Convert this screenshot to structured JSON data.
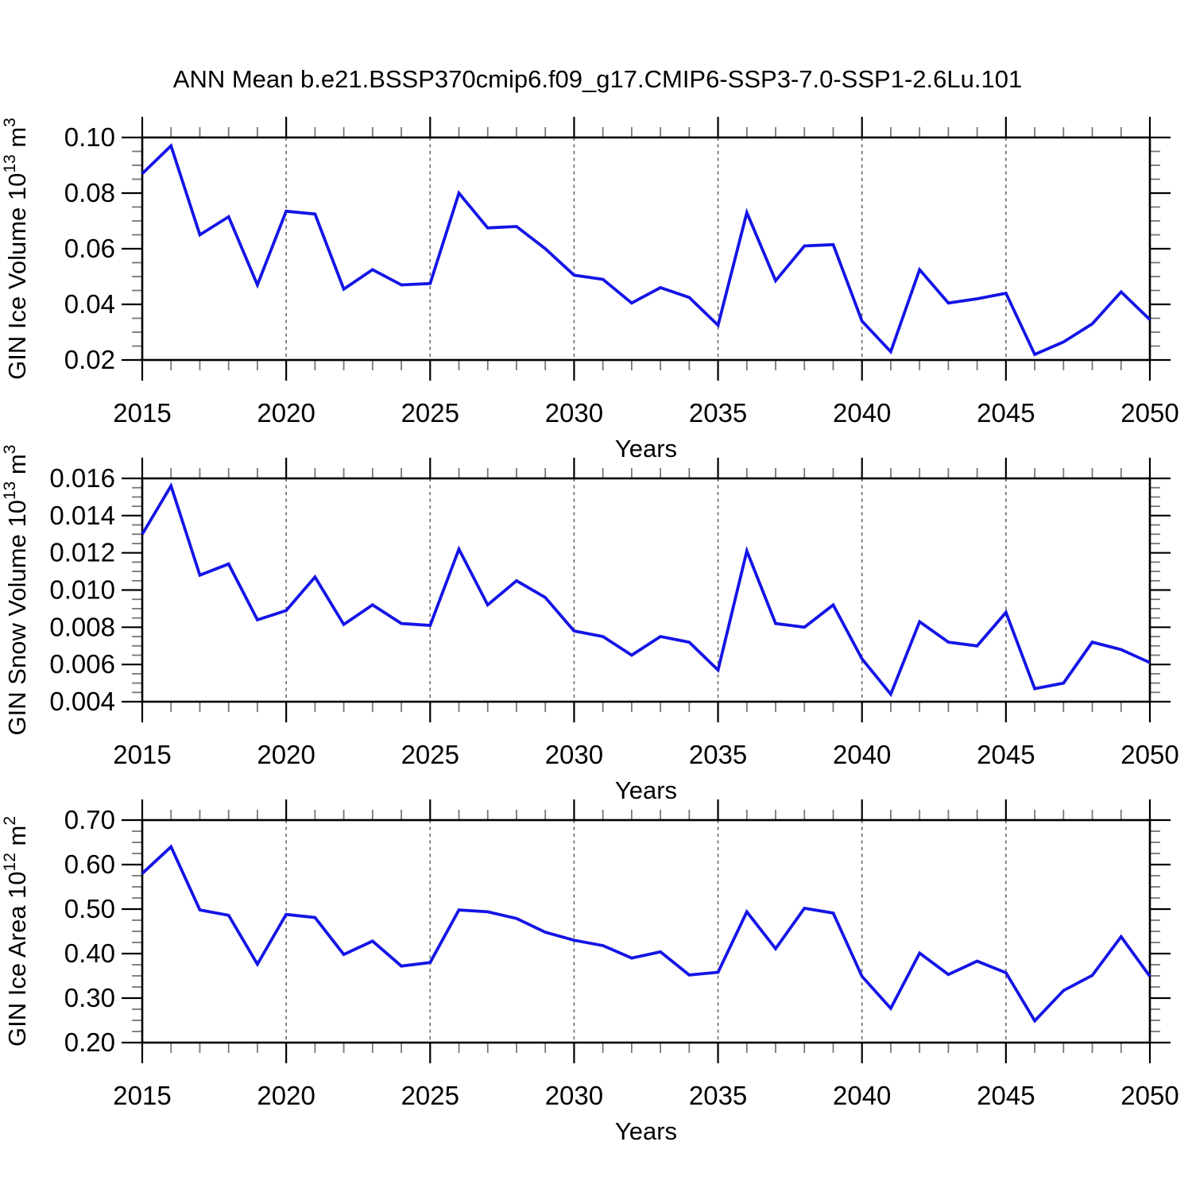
{
  "title": "ANN Mean b.e21.BSSP370cmip6.f09_g17.CMIP6-SSP3-7.0-SSP1-2.6Lu.101",
  "chart_data": [
    {
      "id": "gin-ice-volume",
      "type": "line",
      "title": "",
      "xlabel": "Years",
      "ylabel": "GIN Ice Volume 10^13 m^3",
      "ylabel_parts": [
        {
          "text": "GIN Ice Volume 10",
          "sup": false
        },
        {
          "text": "13",
          "sup": true
        },
        {
          "text": " m",
          "sup": false
        },
        {
          "text": "3",
          "sup": true
        }
      ],
      "color": "#1414e6",
      "xlim": [
        2015,
        2050
      ],
      "ylim": [
        0.02,
        0.1
      ],
      "xticks": {
        "values": [
          2015,
          2020,
          2025,
          2030,
          2035,
          2040,
          2045,
          2050
        ],
        "labels": [
          "2015",
          "2020",
          "2025",
          "2030",
          "2035",
          "2040",
          "2045",
          "2050"
        ]
      },
      "yticks": {
        "values": [
          0.02,
          0.04,
          0.06,
          0.08,
          0.1
        ],
        "labels": [
          "0.02",
          "0.04",
          "0.06",
          "0.08",
          "0.10"
        ]
      },
      "y_minor_step": 0.005,
      "x_minor_step": 1,
      "grid_years": [
        2020,
        2025,
        2030,
        2035,
        2040,
        2045
      ],
      "grid_on": true,
      "legend": null,
      "x": [
        2015,
        2016,
        2017,
        2018,
        2019,
        2020,
        2021,
        2022,
        2023,
        2024,
        2025,
        2026,
        2027,
        2028,
        2029,
        2030,
        2031,
        2032,
        2033,
        2034,
        2035,
        2036,
        2037,
        2038,
        2039,
        2040,
        2041,
        2042,
        2043,
        2044,
        2045,
        2046,
        2047,
        2048,
        2049,
        2050
      ],
      "values": [
        0.087,
        0.097,
        0.065,
        0.0715,
        0.047,
        0.0735,
        0.0725,
        0.0455,
        0.0525,
        0.047,
        0.0475,
        0.08,
        0.0675,
        0.068,
        0.06,
        0.0505,
        0.049,
        0.0405,
        0.046,
        0.0425,
        0.0325,
        0.073,
        0.0485,
        0.061,
        0.0615,
        0.034,
        0.023,
        0.0525,
        0.0405,
        0.042,
        0.044,
        0.022,
        0.0265,
        0.033,
        0.0445,
        0.0345
      ]
    },
    {
      "id": "gin-snow-volume",
      "type": "line",
      "title": "",
      "xlabel": "Years",
      "ylabel": "GIN Snow Volume 10^13 m^3",
      "ylabel_parts": [
        {
          "text": "GIN Snow Volume 10",
          "sup": false
        },
        {
          "text": "13",
          "sup": true
        },
        {
          "text": " m",
          "sup": false
        },
        {
          "text": "3",
          "sup": true
        }
      ],
      "color": "#1414e6",
      "xlim": [
        2015,
        2050
      ],
      "ylim": [
        0.004,
        0.016
      ],
      "xticks": {
        "values": [
          2015,
          2020,
          2025,
          2030,
          2035,
          2040,
          2045,
          2050
        ],
        "labels": [
          "2015",
          "2020",
          "2025",
          "2030",
          "2035",
          "2040",
          "2045",
          "2050"
        ]
      },
      "yticks": {
        "values": [
          0.004,
          0.006,
          0.008,
          0.01,
          0.012,
          0.014,
          0.016
        ],
        "labels": [
          "0.004",
          "0.006",
          "0.008",
          "0.010",
          "0.012",
          "0.014",
          "0.016"
        ]
      },
      "y_minor_step": 0.0005,
      "x_minor_step": 1,
      "grid_years": [
        2020,
        2025,
        2030,
        2035,
        2040,
        2045
      ],
      "grid_on": true,
      "legend": null,
      "x": [
        2015,
        2016,
        2017,
        2018,
        2019,
        2020,
        2021,
        2022,
        2023,
        2024,
        2025,
        2026,
        2027,
        2028,
        2029,
        2030,
        2031,
        2032,
        2033,
        2034,
        2035,
        2036,
        2037,
        2038,
        2039,
        2040,
        2041,
        2042,
        2043,
        2044,
        2045,
        2046,
        2047,
        2048,
        2049,
        2050
      ],
      "values": [
        0.013,
        0.0156,
        0.0108,
        0.0114,
        0.0084,
        0.0089,
        0.0107,
        0.00815,
        0.0092,
        0.0082,
        0.0081,
        0.0122,
        0.0092,
        0.0105,
        0.0096,
        0.0078,
        0.0075,
        0.0065,
        0.0075,
        0.0072,
        0.0057,
        0.0121,
        0.0082,
        0.008,
        0.0092,
        0.0063,
        0.0044,
        0.0083,
        0.0072,
        0.007,
        0.0088,
        0.0047,
        0.005,
        0.0072,
        0.0068,
        0.0061
      ]
    },
    {
      "id": "gin-ice-area",
      "type": "line",
      "title": "",
      "xlabel": "Years",
      "ylabel": "GIN Ice Area 10^12 m^2",
      "ylabel_parts": [
        {
          "text": "GIN Ice Area 10",
          "sup": false
        },
        {
          "text": "12",
          "sup": true
        },
        {
          "text": " m",
          "sup": false
        },
        {
          "text": "2",
          "sup": true
        }
      ],
      "color": "#1414e6",
      "xlim": [
        2015,
        2050
      ],
      "ylim": [
        0.2,
        0.7
      ],
      "xticks": {
        "values": [
          2015,
          2020,
          2025,
          2030,
          2035,
          2040,
          2045,
          2050
        ],
        "labels": [
          "2015",
          "2020",
          "2025",
          "2030",
          "2035",
          "2040",
          "2045",
          "2050"
        ]
      },
      "yticks": {
        "values": [
          0.2,
          0.3,
          0.4,
          0.5,
          0.6,
          0.7
        ],
        "labels": [
          "0.20",
          "0.30",
          "0.40",
          "0.50",
          "0.60",
          "0.70"
        ]
      },
      "y_minor_step": 0.025,
      "x_minor_step": 1,
      "grid_years": [
        2020,
        2025,
        2030,
        2035,
        2040,
        2045
      ],
      "grid_on": true,
      "legend": null,
      "x": [
        2015,
        2016,
        2017,
        2018,
        2019,
        2020,
        2021,
        2022,
        2023,
        2024,
        2025,
        2026,
        2027,
        2028,
        2029,
        2030,
        2031,
        2032,
        2033,
        2034,
        2035,
        2036,
        2037,
        2038,
        2039,
        2040,
        2041,
        2042,
        2043,
        2044,
        2045,
        2046,
        2047,
        2048,
        2049,
        2050
      ],
      "values": [
        0.58,
        0.64,
        0.498,
        0.486,
        0.376,
        0.488,
        0.481,
        0.398,
        0.428,
        0.372,
        0.38,
        0.498,
        0.494,
        0.479,
        0.448,
        0.43,
        0.418,
        0.39,
        0.404,
        0.352,
        0.358,
        0.494,
        0.411,
        0.502,
        0.491,
        0.349,
        0.277,
        0.401,
        0.353,
        0.383,
        0.357,
        0.249,
        0.317,
        0.351,
        0.438,
        0.349
      ]
    }
  ]
}
